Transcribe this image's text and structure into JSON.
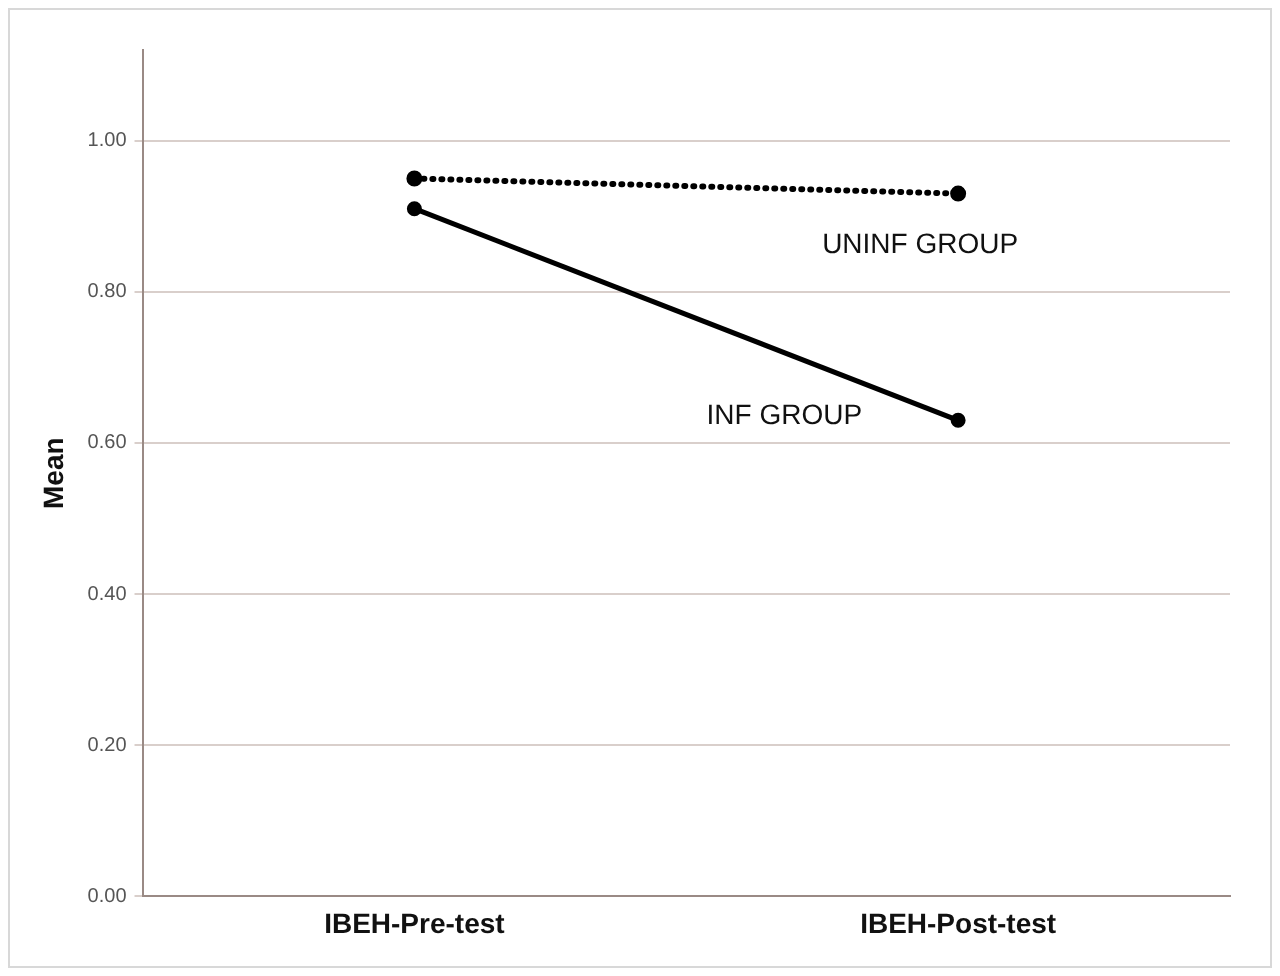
{
  "chart_data": {
    "type": "line",
    "ylabel": "Mean",
    "categories": [
      "IBEH-Pre-test",
      "IBEH-Post-test"
    ],
    "series": [
      {
        "name": "UNINF GROUP",
        "color": "#000000",
        "line_style": "dotted",
        "values": [
          0.95,
          0.93
        ]
      },
      {
        "name": "INF GROUP",
        "color": "#000000",
        "line_style": "solid",
        "values": [
          0.91,
          0.63
        ]
      }
    ],
    "ylim": [
      0,
      1.12
    ],
    "yticks": [
      {
        "value": 0,
        "label": "0.00"
      },
      {
        "value": 0.2,
        "label": "0.20"
      },
      {
        "value": 0.4,
        "label": "0.40"
      },
      {
        "value": 0.6,
        "label": "0.60"
      },
      {
        "value": 0.8,
        "label": "0.80"
      },
      {
        "value": 1,
        "label": "1.00"
      }
    ],
    "grid": "y",
    "legend": false,
    "marker": "circle"
  }
}
